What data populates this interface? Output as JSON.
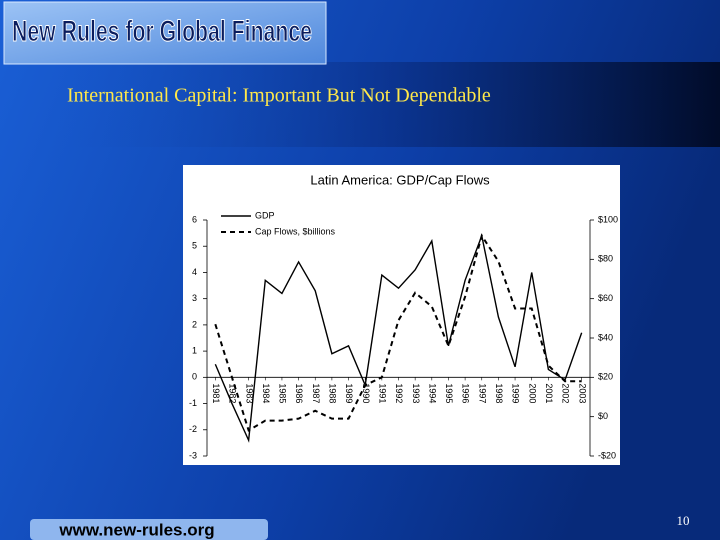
{
  "header": {
    "title": "New Rules for Global Finance"
  },
  "slide_title": "International Capital: Important But Not Dependable",
  "footer": {
    "url": "www.new-rules.org",
    "page_number": 10
  },
  "chart_data": {
    "type": "line",
    "title": "Latin America: GDP/Cap Flows",
    "categories": [
      "1981",
      "1982",
      "1983",
      "1984",
      "1985",
      "1986",
      "1987",
      "1988",
      "1989",
      "1990",
      "1991",
      "1992",
      "1993",
      "1994",
      "1995",
      "1996",
      "1997",
      "1998",
      "1999",
      "2000",
      "2001",
      "2002",
      "2003"
    ],
    "series": [
      {
        "name": "GDP",
        "color": "#000000",
        "line_style": "solid",
        "values": [
          0.5,
          -1.0,
          -2.4,
          3.7,
          3.2,
          4.4,
          3.3,
          0.9,
          1.2,
          -0.3,
          3.9,
          3.4,
          4.1,
          5.2,
          1.2,
          3.7,
          5.4,
          2.3,
          0.4,
          4.0,
          0.3,
          -0.1,
          1.7
        ]
      },
      {
        "name": "Cap Flows, $billions",
        "color": "#000000",
        "line_style": "dashed",
        "axis": "y2",
        "values": [
          47,
          20,
          -7,
          -2,
          -2,
          -1,
          3,
          -1,
          -1,
          16,
          20,
          49,
          63,
          56,
          36,
          61,
          92,
          79,
          55,
          55,
          26,
          18,
          18
        ]
      }
    ],
    "ylim": [
      -3,
      6
    ],
    "yticks": [
      -3,
      -2,
      -1,
      0,
      1,
      2,
      3,
      4,
      5,
      6
    ],
    "y2lim": [
      -20,
      100
    ],
    "y2ticks": [
      {
        "value": -20,
        "label": "-$20"
      },
      {
        "value": 0,
        "label": "$0"
      },
      {
        "value": 20,
        "label": "$20"
      },
      {
        "value": 40,
        "label": "$40"
      },
      {
        "value": 60,
        "label": "$60"
      },
      {
        "value": 80,
        "label": "$80"
      },
      {
        "value": 100,
        "label": "$100"
      }
    ],
    "grid": false,
    "legend": "upper left"
  }
}
